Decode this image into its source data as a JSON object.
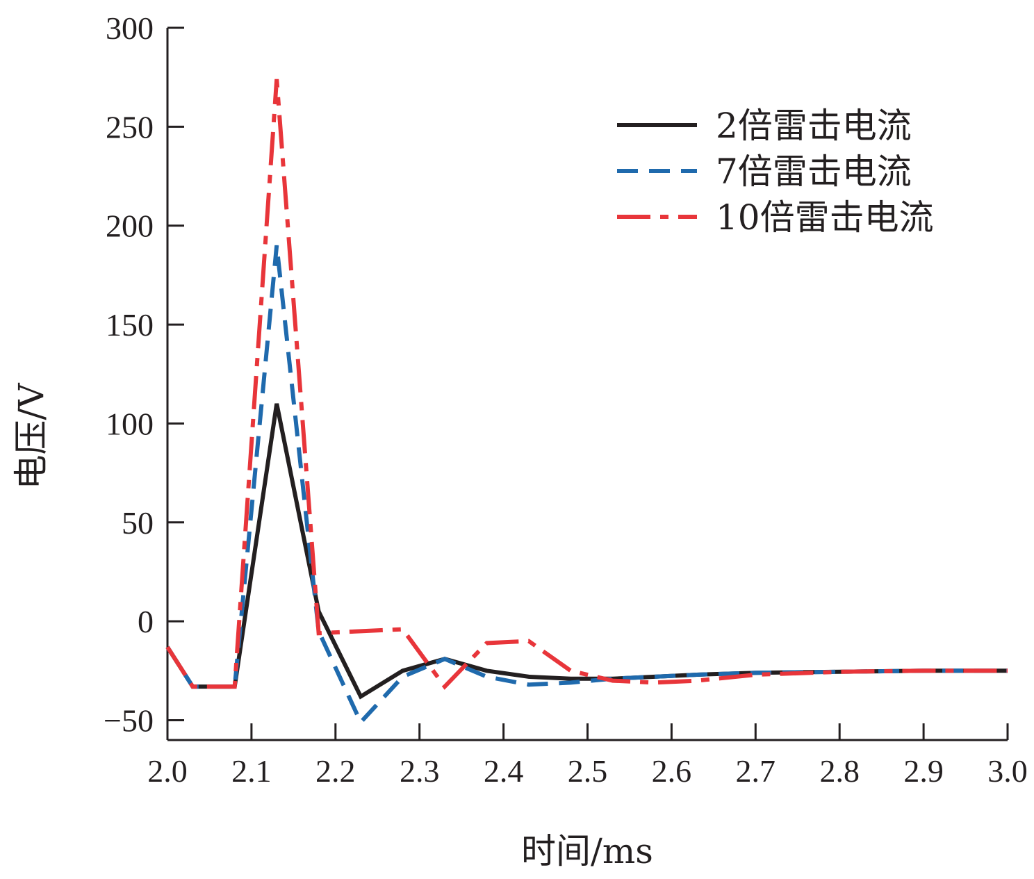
{
  "chart_data": {
    "type": "line",
    "title": "",
    "xlabel": "时间/ms",
    "ylabel": "电压/V",
    "xlim": [
      2.0,
      3.0
    ],
    "ylim": [
      -60,
      300
    ],
    "x_ticks": [
      2.0,
      2.1,
      2.2,
      2.3,
      2.4,
      2.5,
      2.6,
      2.7,
      2.8,
      2.9,
      3.0
    ],
    "x_tick_labels": [
      "2.0",
      "2.1",
      "2.2",
      "2.3",
      "2.4",
      "2.5",
      "2.6",
      "2.7",
      "2.8",
      "2.9",
      "3.0"
    ],
    "y_ticks": [
      -50,
      0,
      50,
      100,
      150,
      200,
      250,
      300
    ],
    "y_tick_labels": [
      "−50",
      "0",
      "50",
      "100",
      "150",
      "200",
      "250",
      "300"
    ],
    "grid": false,
    "legend_position": "top-right",
    "series": [
      {
        "name": "2倍雷击电流",
        "color": "#231f20",
        "dash": "solid",
        "x": [
          2.0,
          2.03,
          2.08,
          2.13,
          2.18,
          2.23,
          2.28,
          2.33,
          2.38,
          2.43,
          2.48,
          2.53,
          2.58,
          2.63,
          2.7,
          2.8,
          2.9,
          3.0
        ],
        "y": [
          -13,
          -33,
          -33,
          110,
          5,
          -38,
          -25,
          -19,
          -25,
          -28,
          -29,
          -29,
          -28,
          -27,
          -26,
          -25.5,
          -25,
          -25
        ]
      },
      {
        "name": "7倍雷击电流",
        "color": "#1f6aad",
        "dash": "dashed",
        "x": [
          2.0,
          2.03,
          2.08,
          2.13,
          2.18,
          2.23,
          2.28,
          2.33,
          2.38,
          2.43,
          2.48,
          2.53,
          2.58,
          2.63,
          2.7,
          2.8,
          2.9,
          3.0
        ],
        "y": [
          -13,
          -33,
          -33,
          190,
          -5,
          -51,
          -28,
          -19,
          -28,
          -32,
          -31,
          -29,
          -28,
          -27,
          -26,
          -25.5,
          -25,
          -25
        ]
      },
      {
        "name": "10倍雷击电流",
        "color": "#e8353a",
        "dash": "dashdot",
        "x": [
          2.0,
          2.03,
          2.08,
          2.13,
          2.18,
          2.23,
          2.28,
          2.33,
          2.38,
          2.43,
          2.48,
          2.53,
          2.58,
          2.63,
          2.7,
          2.8,
          2.9,
          3.0
        ],
        "y": [
          -13,
          -33,
          -33,
          274,
          -6,
          -5,
          -4,
          -33,
          -11,
          -10,
          -25,
          -30,
          -31,
          -30,
          -27,
          -25.5,
          -25,
          -25
        ]
      }
    ]
  }
}
